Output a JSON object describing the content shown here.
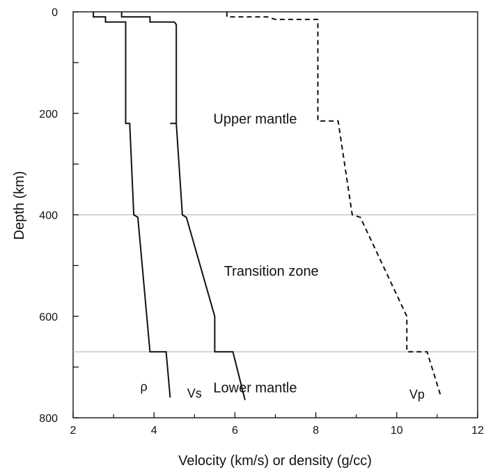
{
  "chart_data": {
    "type": "line",
    "xlabel": "Velocity (km/s) or density (g/cc)",
    "ylabel": "Depth (km)",
    "xlim": [
      2,
      12
    ],
    "ylim": [
      0,
      800
    ],
    "y_inverted": true,
    "x_ticks": [
      2,
      4,
      6,
      8,
      10,
      12
    ],
    "y_ticks_major": [
      0,
      200,
      400,
      600,
      800
    ],
    "y_ticks_minor": [
      100,
      300,
      500,
      700
    ],
    "x_minor_ticks": [
      3,
      5,
      7,
      9,
      11
    ],
    "grid": false,
    "reference_lines": [
      {
        "depth": 400,
        "color": "#bbbbbb"
      },
      {
        "depth": 670,
        "color": "#bbbbbb"
      }
    ],
    "zone_labels": [
      {
        "text": "Upper mantle",
        "x": 6.5,
        "y": 220
      },
      {
        "text": "Transition zone",
        "x": 6.9,
        "y": 520
      },
      {
        "text": "Lower mantle",
        "x": 6.5,
        "y": 750
      }
    ],
    "series": [
      {
        "name": "ρ",
        "style": "solid",
        "label_pos": {
          "x": 3.75,
          "y": 747
        },
        "points": [
          [
            2.5,
            0
          ],
          [
            2.5,
            10
          ],
          [
            2.8,
            10
          ],
          [
            2.8,
            20
          ],
          [
            3.3,
            20
          ],
          [
            3.3,
            25
          ],
          [
            3.3,
            220
          ],
          [
            3.4,
            220
          ],
          [
            3.5,
            400
          ],
          [
            3.6,
            405
          ],
          [
            3.9,
            670
          ],
          [
            4.3,
            670
          ],
          [
            4.4,
            760
          ]
        ]
      },
      {
        "name": "Vs",
        "style": "solid",
        "label_pos": {
          "x": 5.0,
          "y": 760
        },
        "points": [
          [
            3.2,
            0
          ],
          [
            3.2,
            10
          ],
          [
            3.9,
            10
          ],
          [
            3.9,
            20
          ],
          [
            4.5,
            20
          ],
          [
            4.55,
            25
          ],
          [
            4.55,
            220
          ],
          [
            4.4,
            220
          ],
          [
            4.55,
            220
          ],
          [
            4.7,
            400
          ],
          [
            4.8,
            405
          ],
          [
            5.5,
            600
          ],
          [
            5.5,
            670
          ],
          [
            5.95,
            670
          ],
          [
            6.25,
            765
          ]
        ]
      },
      {
        "name": "Vp",
        "style": "dashed",
        "label_pos": {
          "x": 10.5,
          "y": 762
        },
        "points": [
          [
            5.8,
            0
          ],
          [
            5.8,
            10
          ],
          [
            6.8,
            10
          ],
          [
            7.0,
            15
          ],
          [
            8.05,
            15
          ],
          [
            8.05,
            20
          ],
          [
            8.05,
            215
          ],
          [
            8.55,
            215
          ],
          [
            8.9,
            400
          ],
          [
            9.1,
            405
          ],
          [
            10.25,
            600
          ],
          [
            10.25,
            670
          ],
          [
            10.75,
            670
          ],
          [
            11.1,
            760
          ]
        ]
      }
    ]
  }
}
